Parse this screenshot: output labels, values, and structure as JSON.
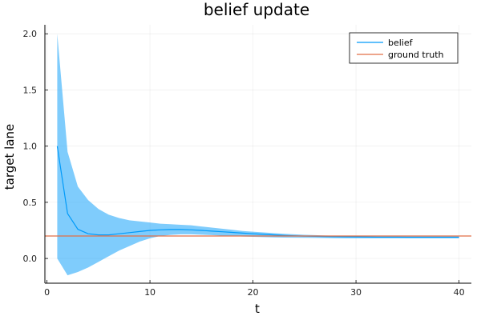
{
  "chart_data": {
    "type": "line",
    "title": "belief update",
    "xlabel": "t",
    "ylabel": "target lane",
    "xlim": [
      -0.2,
      41.2
    ],
    "ylim": [
      -0.22,
      2.08
    ],
    "xticks": [
      0,
      10,
      20,
      30,
      40
    ],
    "xtick_labels": [
      "0",
      "10",
      "20",
      "30",
      "40"
    ],
    "yticks": [
      0.0,
      0.5,
      1.0,
      1.5,
      2.0
    ],
    "ytick_labels": [
      "0.0",
      "0.5",
      "1.0",
      "1.5",
      "2.0"
    ],
    "grid": true,
    "legend_position": "top-right",
    "series": [
      {
        "name": "belief",
        "color": "#009af9",
        "band_color": "#009af9",
        "x": [
          1,
          2,
          3,
          4,
          5,
          6,
          7,
          8,
          9,
          10,
          11,
          12,
          13,
          14,
          15,
          16,
          17,
          18,
          19,
          20,
          21,
          22,
          23,
          24,
          25,
          26,
          27,
          28,
          29,
          30,
          31,
          32,
          33,
          34,
          35,
          36,
          37,
          38,
          39,
          40
        ],
        "y": [
          1.0,
          0.4,
          0.26,
          0.22,
          0.21,
          0.21,
          0.22,
          0.23,
          0.24,
          0.25,
          0.255,
          0.258,
          0.258,
          0.255,
          0.25,
          0.244,
          0.238,
          0.232,
          0.226,
          0.22,
          0.215,
          0.21,
          0.206,
          0.202,
          0.199,
          0.197,
          0.195,
          0.194,
          0.193,
          0.192,
          0.191,
          0.19,
          0.19,
          0.19,
          0.189,
          0.189,
          0.189,
          0.189,
          0.189,
          0.189
        ],
        "lower": [
          0.0,
          -0.15,
          -0.12,
          -0.08,
          -0.03,
          0.02,
          0.07,
          0.11,
          0.15,
          0.18,
          0.2,
          0.21,
          0.215,
          0.215,
          0.212,
          0.208,
          0.203,
          0.199,
          0.196,
          0.193,
          0.19,
          0.188,
          0.186,
          0.185,
          0.184,
          0.183,
          0.182,
          0.181,
          0.18,
          0.18,
          0.18,
          0.18,
          0.18,
          0.18,
          0.18,
          0.18,
          0.18,
          0.18,
          0.18,
          0.18
        ],
        "upper": [
          2.0,
          0.95,
          0.64,
          0.52,
          0.44,
          0.39,
          0.36,
          0.34,
          0.33,
          0.32,
          0.31,
          0.305,
          0.3,
          0.295,
          0.285,
          0.275,
          0.265,
          0.255,
          0.245,
          0.238,
          0.232,
          0.226,
          0.22,
          0.215,
          0.211,
          0.208,
          0.205,
          0.203,
          0.202,
          0.201,
          0.2,
          0.2,
          0.2,
          0.2,
          0.2,
          0.2,
          0.2,
          0.2,
          0.2,
          0.2
        ]
      },
      {
        "name": "ground truth",
        "color": "#e26f46",
        "hline": 0.2
      }
    ]
  }
}
